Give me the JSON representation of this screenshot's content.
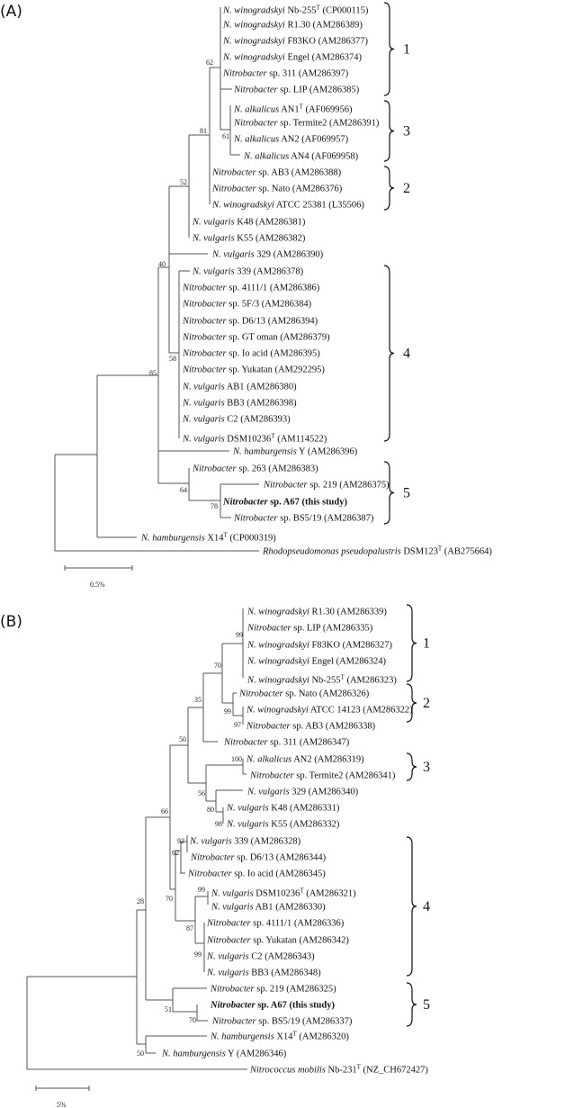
{
  "panels": [
    {
      "label": "(A)",
      "scale_label": "0.5%",
      "leaves": [
        {
          "genus": "N. winogradskyi",
          "strain": " Nb-255",
          "sup": "T",
          "acc": " (CP000115)"
        },
        {
          "genus": "N. winogradskyi",
          "strain": " R1.30",
          "acc": " (AM286389)"
        },
        {
          "genus": "N. winogradskyi",
          "strain": " F83KO",
          "acc": " (AM286377)"
        },
        {
          "genus": "N. winogradskyi",
          "strain": " Engel",
          "acc": " (AM286374)"
        },
        {
          "genus": "Nitrobacter",
          "strain": " sp. 311",
          "acc": " (AM286397)"
        },
        {
          "genus": "Nitrobacter",
          "strain": " sp. LIP",
          "acc": " (AM286385)"
        },
        {
          "genus": "N. alkalicus",
          "strain": " AN1",
          "sup": "T",
          "acc": " (AF069956)"
        },
        {
          "genus": "Nitrobacter",
          "strain": " sp. Termite2",
          "acc": " (AM286391)"
        },
        {
          "genus": "N. alkalicus",
          "strain": " AN2",
          "acc": " (AF069957)"
        },
        {
          "genus": "N. alkalicus",
          "strain": " AN4",
          "acc": " (AF069958)"
        },
        {
          "genus": "Nitrobacter",
          "strain": " sp. AB3",
          "acc": " (AM286388)"
        },
        {
          "genus": "Nitrobacter",
          "strain": " sp. Nato",
          "acc": " (AM286376)"
        },
        {
          "genus": "N. winogradskyi",
          "strain": " ATCC 25381",
          "acc": " (L35506)"
        },
        {
          "genus": "N. vulgaris",
          "strain": " K48",
          "acc": " (AM286381)"
        },
        {
          "genus": "N. vulgaris",
          "strain": " K55",
          "acc": " (AM286382)"
        },
        {
          "genus": "N. vulgaris",
          "strain": " 329",
          "acc": " (AM286390)"
        },
        {
          "genus": "N. vulgaris",
          "strain": " 339",
          "acc": " (AM286378)"
        },
        {
          "genus": "Nitrobacter",
          "strain": " sp. 4111/1",
          "acc": " (AM286386)"
        },
        {
          "genus": "Nitrobacter",
          "strain": " sp. 5F/3",
          "acc": " (AM286384)"
        },
        {
          "genus": "Nitrobacter",
          "strain": " sp. D6/13",
          "acc": " (AM286394)"
        },
        {
          "genus": "Nitrobacter",
          "strain": " sp. GT oman",
          "acc": " (AM286379)"
        },
        {
          "genus": "Nitrobacter",
          "strain": " sp. Io acid",
          "acc": " (AM286395)"
        },
        {
          "genus": "Nitrobacter",
          "strain": " sp. Yukatan",
          "acc": " (AM292295)"
        },
        {
          "genus": "N. vulgaris",
          "strain": " AB1",
          "acc": " (AM286380)"
        },
        {
          "genus": "N. vulgaris",
          "strain": " BB3",
          "acc": " (AM286398)"
        },
        {
          "genus": "N. vulgaris",
          "strain": " C2",
          "acc": " (AM286393)"
        },
        {
          "genus": "N. vulgaris",
          "strain": " DSM10236",
          "sup": "T",
          "acc": " (AM114522)"
        },
        {
          "genus": "N. hamburgensis",
          "strain": " Y",
          "acc": " (AM286396)"
        },
        {
          "genus": "Nitrobacter",
          "strain": " sp. 263",
          "acc": " (AM286383)"
        },
        {
          "genus": "Nitrobacter",
          "strain": " sp. 219",
          "acc": " (AM286375)"
        },
        {
          "genus": "Nitrobacter",
          "strain": " sp. A67",
          "acc": " (this study)",
          "bold": true
        },
        {
          "genus": "Nitrobacter",
          "strain": " sp. BS5/19",
          "acc": " (AM286387)"
        },
        {
          "genus": "N. hamburgensis",
          "strain": " X14",
          "sup": "T",
          "acc": " (CP000319)"
        },
        {
          "genus": "Rhodopseudomonas pseudopalustris",
          "strain": " DSM123",
          "sup": "T",
          "acc": " (AB275664)"
        }
      ],
      "bootstrap": [
        "62",
        "61",
        "81",
        "52",
        "40",
        "58",
        "85",
        "64",
        "78"
      ],
      "clusters": [
        "1",
        "3",
        "2",
        "4",
        "5"
      ]
    },
    {
      "label": "(B)",
      "scale_label": "5%",
      "leaves": [
        {
          "genus": "N. winogradskyi",
          "strain": " R1.30",
          "acc": " (AM286339)"
        },
        {
          "genus": "Nitrobacter",
          "strain": " sp. LIP",
          "acc": " (AM286335)"
        },
        {
          "genus": "N. winogradskyi",
          "strain": " F83KO",
          "acc": " (AM286327)"
        },
        {
          "genus": "N. winogradskyi",
          "strain": " Engel",
          "acc": " (AM286324)"
        },
        {
          "genus": "N. winogradskyi",
          "strain": " Nb-255",
          "sup": "T",
          "acc": " (AM286323)"
        },
        {
          "genus": "Nitrobacter",
          "strain": " sp. Nato",
          "acc": " (AM286326)"
        },
        {
          "genus": "N. winogradskyi",
          "strain": " ATCC 14123",
          "acc": " (AM286322)"
        },
        {
          "genus": "Nitrobacter",
          "strain": " sp. AB3",
          "acc": " (AM286338)"
        },
        {
          "genus": "Nitrobacter",
          "strain": " sp. 311",
          "acc": " (AM286347)"
        },
        {
          "genus": "N. alkalicus",
          "strain": " AN2",
          "acc": " (AM286319)"
        },
        {
          "genus": "Nitrobacter",
          "strain": " sp. Termite2",
          "acc": " (AM286341)"
        },
        {
          "genus": "N. vulgaris",
          "strain": " 329",
          "acc": " (AM286340)"
        },
        {
          "genus": "N. vulgaris",
          "strain": " K48",
          "acc": " (AM286331)"
        },
        {
          "genus": "N. vulgaris",
          "strain": " K55",
          "acc": " (AM286332)"
        },
        {
          "genus": "N. vulgaris",
          "strain": " 339",
          "acc": " (AM286328)"
        },
        {
          "genus": "Nitrobacter",
          "strain": " sp. D6/13",
          "acc": " (AM286344)"
        },
        {
          "genus": "Nitrobacter",
          "strain": " sp. Io acid",
          "acc": " (AM286345)"
        },
        {
          "genus": "N. vulgaris",
          "strain": " DSM10236",
          "sup": "T",
          "acc": " (AM286321)"
        },
        {
          "genus": "N. vulgaris",
          "strain": " AB1",
          "acc": " (AM286330)"
        },
        {
          "genus": "Nitrobacter",
          "strain": " sp. 4111/1",
          "acc": " (AM286336)"
        },
        {
          "genus": "Nitrobacter",
          "strain": " sp. Yukatan",
          "acc": " (AM286342)"
        },
        {
          "genus": "N. vulgaris",
          "strain": " C2",
          "acc": " (AM286343)"
        },
        {
          "genus": "N. vulgaris",
          "strain": " BB3",
          "acc": " (AM286348)"
        },
        {
          "genus": "Nitrobacter",
          "strain": " sp. 219",
          "acc": " (AM286325)"
        },
        {
          "genus": "Nitrobacter",
          "strain": " sp. A67",
          "acc": " (this study)",
          "bold": true
        },
        {
          "genus": "Nitrobacter",
          "strain": " sp. BS5/19",
          "acc": " (AM286337)"
        },
        {
          "genus": "N. hamburgensis",
          "strain": " X14",
          "sup": "T",
          "acc": " (AM286320)"
        },
        {
          "genus": "N. hamburgensis",
          "strain": " Y",
          "acc": " (AM286346)"
        },
        {
          "genus": "Nitrococcus mobilis",
          "strain": " Nb-231",
          "sup": "T",
          "acc": " (NZ_CH672427)"
        }
      ],
      "bootstrap": [
        "99",
        "70",
        "35",
        "99",
        "97",
        "50",
        "100",
        "56",
        "80",
        "98",
        "66",
        "92",
        "62",
        "70",
        "99",
        "87",
        "99",
        "28",
        "51",
        "70",
        "50"
      ],
      "clusters": [
        "1",
        "2",
        "3",
        "4",
        "5"
      ]
    }
  ]
}
